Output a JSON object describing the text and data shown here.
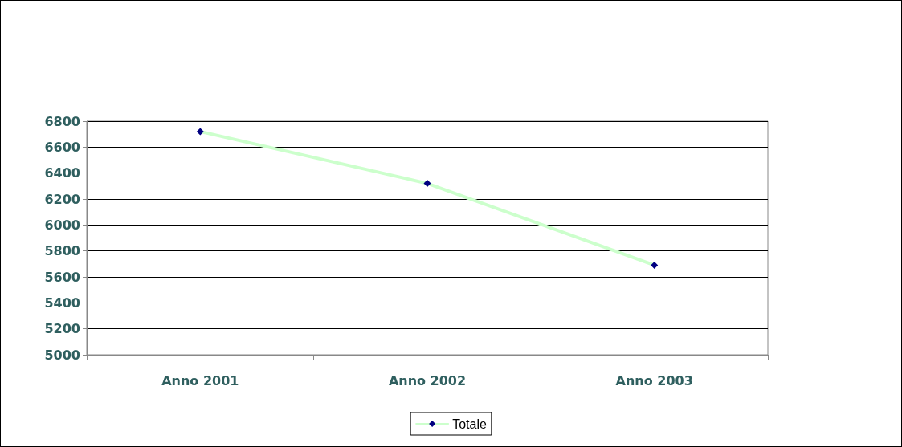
{
  "chart_data": {
    "type": "line",
    "categories": [
      "Anno 2001",
      "Anno 2002",
      "Anno 2003"
    ],
    "series": [
      {
        "name": "Totale",
        "color": "#ccffcc",
        "colors": [
          "#000080",
          "#000080",
          "#000080"
        ],
        "values": [
          6720,
          6320,
          5690
        ]
      }
    ],
    "ylim": [
      5000,
      6800
    ],
    "yticks": [
      5000,
      5200,
      5400,
      5600,
      5800,
      6000,
      6200,
      6400,
      6600,
      6800
    ],
    "grid": "y",
    "legend": "bottom",
    "marker": "diamond",
    "line_style": "solid"
  }
}
